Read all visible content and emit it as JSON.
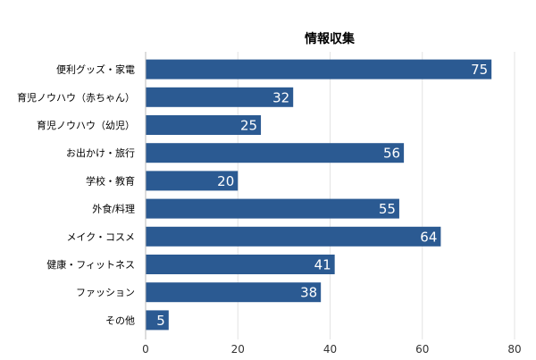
{
  "chart_data": {
    "type": "bar",
    "orientation": "horizontal",
    "title": "情報収集",
    "categories": [
      "便利グッズ・家電",
      "育児ノウハウ（赤ちゃん）",
      "育児ノウハウ（幼児）",
      "お出かけ・旅行",
      "学校・教育",
      "外食/料理",
      "メイク・コスメ",
      "健康・フィットネス",
      "ファッション",
      "その他"
    ],
    "values": [
      75,
      32,
      25,
      56,
      20,
      55,
      64,
      41,
      38,
      5
    ],
    "xlim": [
      0,
      80
    ],
    "xticks": [
      0,
      20,
      40,
      60,
      80
    ],
    "xlabel": "",
    "ylabel": "",
    "grid": true,
    "bar_color": "#2b5a92",
    "data_labels": true
  }
}
